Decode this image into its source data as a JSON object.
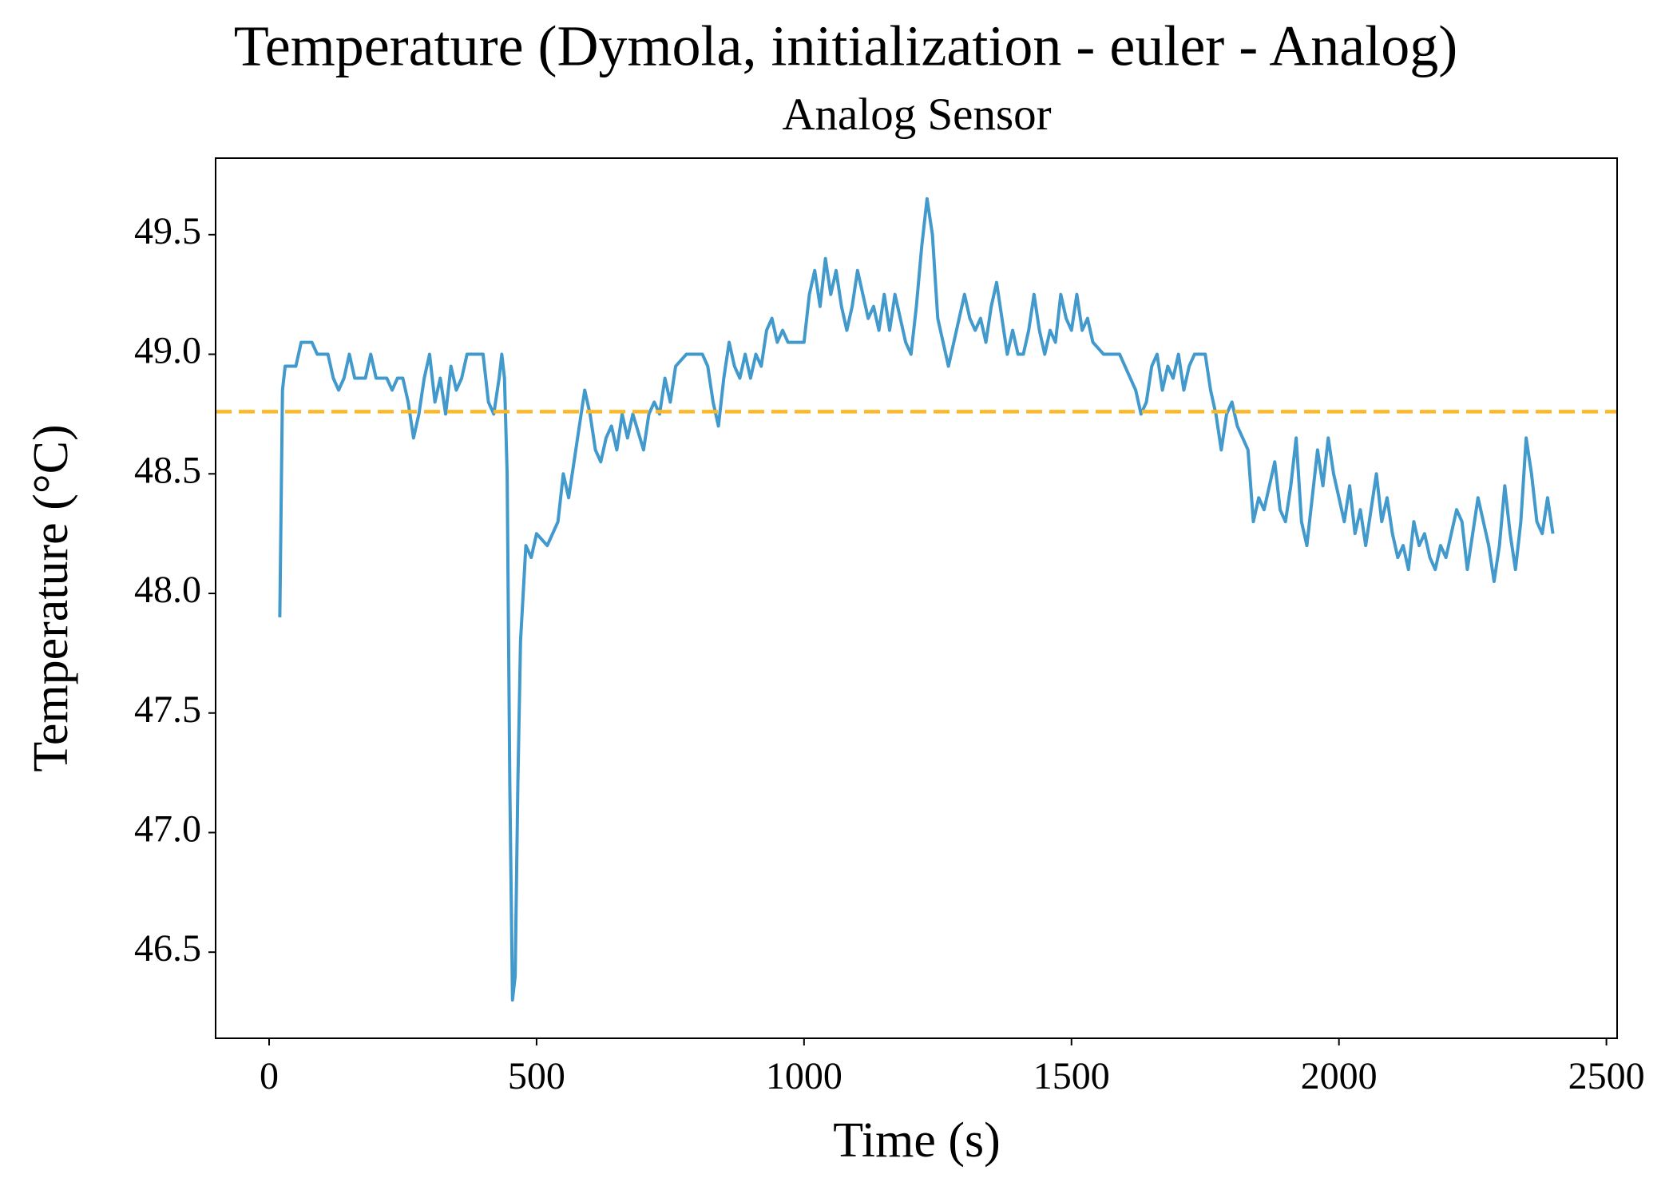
{
  "chart_data": {
    "type": "line",
    "title": "Temperature (Dymola, initialization - euler - Analog)",
    "subtitle": "Analog Sensor",
    "x_label": "Time (s)",
    "y_label": "Temperature (°C)",
    "xlim": [
      -100,
      2520
    ],
    "ylim": [
      46.14,
      49.82
    ],
    "xticks": [
      0,
      500,
      1000,
      1500,
      2000,
      2500
    ],
    "yticks": [
      46.5,
      {
        "value": 47,
        "label": "47.0"
      },
      47.5,
      {
        "value": 48,
        "label": "48.0"
      },
      48.5,
      {
        "value": 49,
        "label": "49.0"
      },
      49.5
    ],
    "threshold": {
      "value": 48.76,
      "color": "#fbb829"
    },
    "x": [
      20,
      25,
      30,
      50,
      60,
      80,
      90,
      110,
      120,
      130,
      140,
      150,
      160,
      180,
      190,
      200,
      220,
      230,
      240,
      250,
      260,
      270,
      280,
      290,
      300,
      310,
      320,
      330,
      340,
      350,
      360,
      370,
      400,
      410,
      420,
      430,
      435,
      440,
      445,
      450,
      455,
      460,
      465,
      470,
      480,
      490,
      500,
      520,
      530,
      540,
      550,
      560,
      570,
      580,
      590,
      600,
      610,
      620,
      630,
      640,
      650,
      660,
      670,
      680,
      700,
      710,
      720,
      730,
      740,
      750,
      760,
      780,
      810,
      820,
      830,
      840,
      850,
      860,
      870,
      880,
      890,
      900,
      910,
      920,
      930,
      940,
      950,
      960,
      970,
      1000,
      1010,
      1020,
      1030,
      1040,
      1050,
      1060,
      1070,
      1080,
      1090,
      1100,
      1110,
      1120,
      1130,
      1140,
      1150,
      1160,
      1170,
      1180,
      1190,
      1200,
      1210,
      1220,
      1230,
      1240,
      1250,
      1260,
      1270,
      1280,
      1290,
      1300,
      1310,
      1320,
      1330,
      1340,
      1350,
      1360,
      1370,
      1380,
      1390,
      1400,
      1410,
      1420,
      1430,
      1440,
      1450,
      1460,
      1470,
      1480,
      1490,
      1500,
      1510,
      1520,
      1530,
      1540,
      1560,
      1590,
      1600,
      1620,
      1630,
      1640,
      1650,
      1660,
      1670,
      1680,
      1690,
      1700,
      1710,
      1720,
      1730,
      1750,
      1760,
      1770,
      1780,
      1790,
      1800,
      1810,
      1820,
      1830,
      1840,
      1850,
      1860,
      1870,
      1880,
      1890,
      1900,
      1910,
      1920,
      1930,
      1940,
      1950,
      1960,
      1970,
      1980,
      1990,
      2000,
      2010,
      2020,
      2030,
      2040,
      2050,
      2060,
      2070,
      2080,
      2090,
      2100,
      2110,
      2120,
      2130,
      2140,
      2150,
      2160,
      2170,
      2180,
      2190,
      2200,
      2210,
      2220,
      2230,
      2240,
      2250,
      2260,
      2270,
      2280,
      2290,
      2300,
      2310,
      2320,
      2330,
      2340,
      2350,
      2360,
      2370,
      2380,
      2390,
      2400
    ],
    "series": [
      {
        "color": "#4299cc",
        "values": [
          47.9,
          48.85,
          48.95,
          48.95,
          49.05,
          49.05,
          49.0,
          49.0,
          48.9,
          48.85,
          48.9,
          49.0,
          48.9,
          48.9,
          49.0,
          48.9,
          48.9,
          48.85,
          48.9,
          48.9,
          48.8,
          48.65,
          48.75,
          48.9,
          49.0,
          48.8,
          48.9,
          48.75,
          48.95,
          48.85,
          48.9,
          49.0,
          49.0,
          48.8,
          48.75,
          48.9,
          49.0,
          48.9,
          48.5,
          47.2,
          46.3,
          46.4,
          47.2,
          47.8,
          48.2,
          48.15,
          48.25,
          48.2,
          48.25,
          48.3,
          48.5,
          48.4,
          48.55,
          48.7,
          48.85,
          48.75,
          48.6,
          48.55,
          48.65,
          48.7,
          48.6,
          48.75,
          48.65,
          48.75,
          48.6,
          48.75,
          48.8,
          48.75,
          48.9,
          48.8,
          48.95,
          49.0,
          49.0,
          48.95,
          48.8,
          48.7,
          48.9,
          49.05,
          48.95,
          48.9,
          49.0,
          48.9,
          49.0,
          48.95,
          49.1,
          49.15,
          49.05,
          49.1,
          49.05,
          49.05,
          49.25,
          49.35,
          49.2,
          49.4,
          49.25,
          49.35,
          49.2,
          49.1,
          49.2,
          49.35,
          49.25,
          49.15,
          49.2,
          49.1,
          49.25,
          49.1,
          49.25,
          49.15,
          49.05,
          49.0,
          49.2,
          49.45,
          49.65,
          49.5,
          49.15,
          49.05,
          48.95,
          49.05,
          49.15,
          49.25,
          49.15,
          49.1,
          49.15,
          49.05,
          49.2,
          49.3,
          49.15,
          49.0,
          49.1,
          49.0,
          49.0,
          49.1,
          49.25,
          49.1,
          49.0,
          49.1,
          49.05,
          49.25,
          49.15,
          49.1,
          49.25,
          49.1,
          49.15,
          49.05,
          49.0,
          49.0,
          48.95,
          48.85,
          48.75,
          48.8,
          48.95,
          49.0,
          48.85,
          48.95,
          48.9,
          49.0,
          48.85,
          48.95,
          49.0,
          49.0,
          48.85,
          48.75,
          48.6,
          48.75,
          48.8,
          48.7,
          48.65,
          48.6,
          48.3,
          48.4,
          48.35,
          48.45,
          48.55,
          48.35,
          48.3,
          48.45,
          48.65,
          48.3,
          48.2,
          48.4,
          48.6,
          48.45,
          48.65,
          48.5,
          48.4,
          48.3,
          48.45,
          48.25,
          48.35,
          48.2,
          48.35,
          48.5,
          48.3,
          48.4,
          48.25,
          48.15,
          48.2,
          48.1,
          48.3,
          48.2,
          48.25,
          48.15,
          48.1,
          48.2,
          48.15,
          48.25,
          48.35,
          48.3,
          48.1,
          48.25,
          48.4,
          48.3,
          48.2,
          48.05,
          48.2,
          48.45,
          48.25,
          48.1,
          48.3,
          48.65,
          48.5,
          48.3,
          48.25,
          48.4,
          48.25
        ]
      }
    ]
  }
}
